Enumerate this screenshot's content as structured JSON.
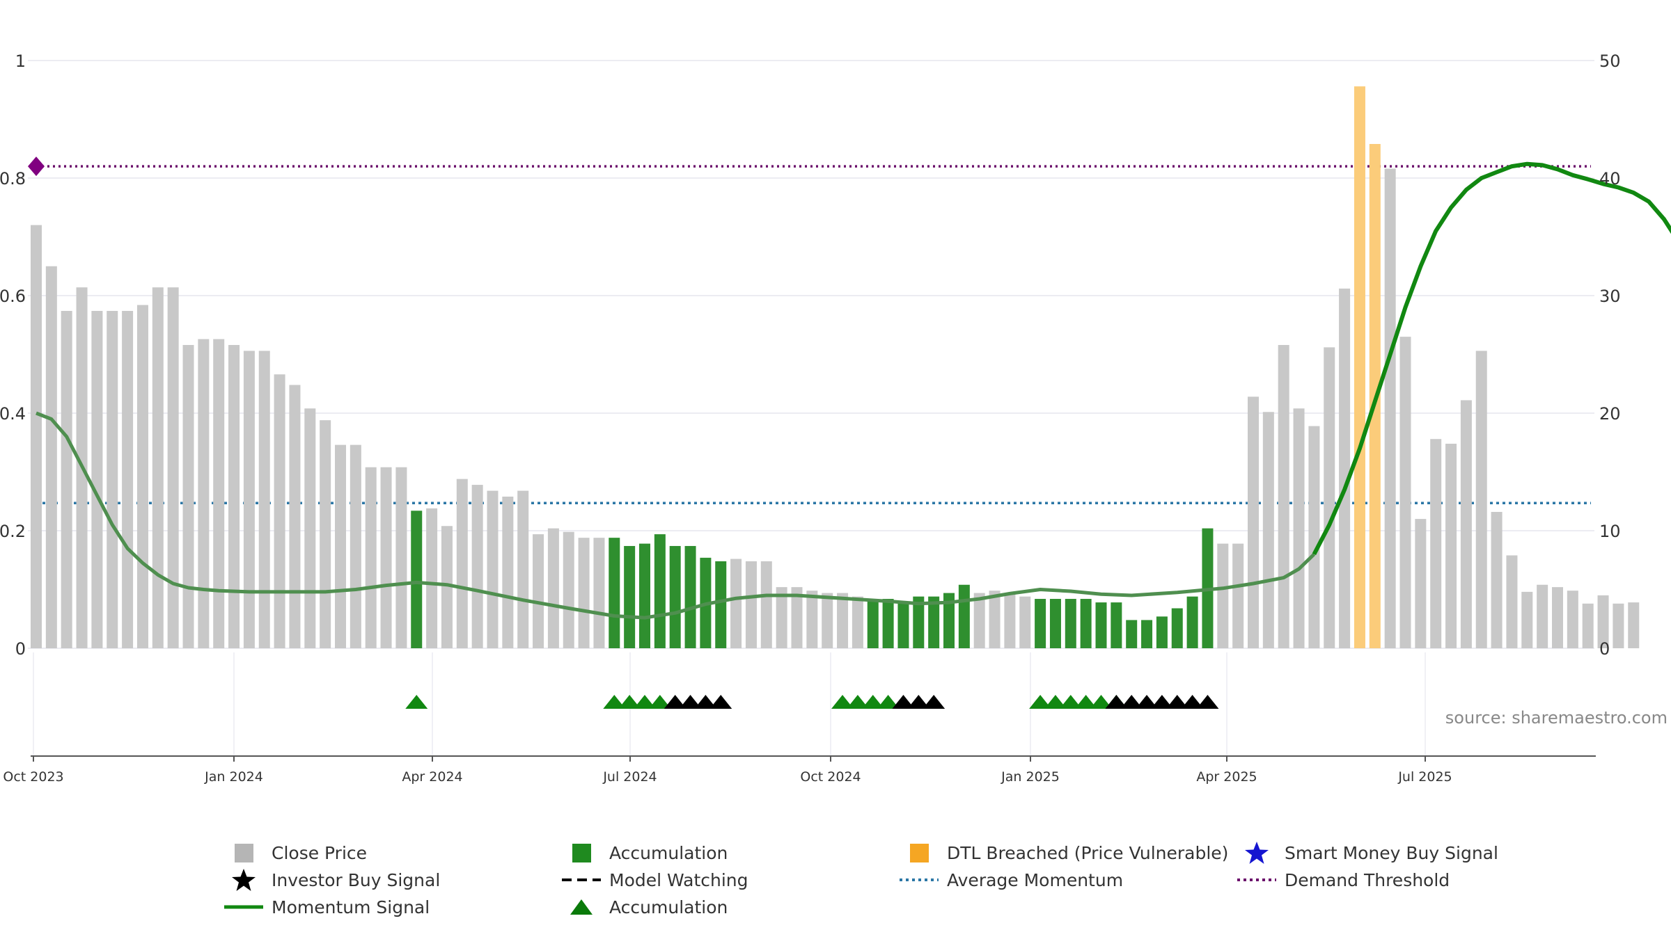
{
  "chart_data": {
    "type": "bar",
    "x_start": "Oct 2023",
    "x_ticks": [
      "Oct 2023",
      "Jan 2024",
      "Apr 2024",
      "Jul 2024",
      "Oct 2024",
      "Jan 2025",
      "Apr 2025",
      "Jul 2025"
    ],
    "y_left_ticks": [
      "0",
      "0.2",
      "0.4",
      "0.6",
      "0.8",
      "1"
    ],
    "y_right_ticks": [
      "0",
      "10",
      "20",
      "30",
      "40",
      "50"
    ],
    "y_left_range": [
      0,
      1
    ],
    "y_right_range": [
      0,
      50
    ],
    "demand_threshold": 0.82,
    "average_momentum": 0.247,
    "series": [
      {
        "name": "Close Price",
        "axis": "right",
        "values": [
          36,
          32.5,
          28.7,
          30.7,
          28.7,
          28.7,
          28.7,
          29.2,
          30.7,
          30.7,
          25.8,
          26.3,
          26.3,
          25.8,
          25.3,
          25.3,
          23.3,
          22.4,
          20.4,
          19.4,
          17.3,
          17.3,
          15.4,
          15.4,
          15.4,
          11.7,
          11.9,
          10.4,
          14.4,
          13.9,
          13.4,
          12.9,
          13.4,
          9.7,
          10.2,
          9.9,
          9.4,
          9.4,
          9.4,
          8.7,
          8.9,
          9.7,
          8.7,
          8.7,
          7.7,
          7.4,
          7.6,
          7.4,
          7.4,
          5.2,
          5.2,
          4.9,
          4.7,
          4.7,
          4.4,
          4.2,
          4.2,
          3.9,
          4.4,
          4.4,
          4.7,
          5.4,
          4.7,
          4.9,
          4.7,
          4.4,
          4.2,
          4.2,
          4.2,
          4.2,
          3.9,
          3.9,
          2.4,
          2.4,
          2.7,
          3.4,
          4.4,
          10.2,
          8.9,
          8.9,
          21.4,
          20.1,
          25.8,
          20.4,
          18.9,
          25.6,
          30.6,
          47.8,
          42.9,
          40.8,
          26.5,
          11.0,
          17.8,
          17.4,
          21.1,
          25.3,
          11.6,
          7.9,
          4.8,
          5.4,
          5.2,
          4.9,
          3.8,
          4.5,
          3.8,
          3.9
        ],
        "state": [
          "n",
          "n",
          "n",
          "n",
          "n",
          "n",
          "n",
          "n",
          "n",
          "n",
          "n",
          "n",
          "n",
          "n",
          "n",
          "n",
          "n",
          "n",
          "n",
          "n",
          "n",
          "n",
          "n",
          "n",
          "n",
          "a",
          "n",
          "n",
          "n",
          "n",
          "n",
          "n",
          "n",
          "n",
          "n",
          "n",
          "n",
          "n",
          "a",
          "a",
          "a",
          "a",
          "a",
          "a",
          "a",
          "a",
          "n",
          "n",
          "n",
          "n",
          "n",
          "n",
          "n",
          "n",
          "n",
          "a",
          "a",
          "a",
          "a",
          "a",
          "a",
          "a",
          "n",
          "n",
          "n",
          "n",
          "a",
          "a",
          "a",
          "a",
          "a",
          "a",
          "a",
          "a",
          "a",
          "a",
          "a",
          "a",
          "n",
          "n",
          "n",
          "n",
          "n",
          "n",
          "n",
          "n",
          "n",
          "d",
          "d",
          "n",
          "n",
          "n",
          "n",
          "n",
          "n",
          "n",
          "n",
          "n",
          "n",
          "n",
          "n",
          "n",
          "n",
          "n",
          "n",
          "n"
        ]
      },
      {
        "name": "Momentum Signal",
        "axis": "left",
        "points": [
          [
            0,
            0.4
          ],
          [
            1,
            0.39
          ],
          [
            2,
            0.36
          ],
          [
            3,
            0.31
          ],
          [
            4,
            0.26
          ],
          [
            5,
            0.21
          ],
          [
            6,
            0.17
          ],
          [
            7,
            0.145
          ],
          [
            8,
            0.125
          ],
          [
            9,
            0.11
          ],
          [
            10,
            0.103
          ],
          [
            11,
            0.1
          ],
          [
            12,
            0.098
          ],
          [
            14,
            0.096
          ],
          [
            17,
            0.096
          ],
          [
            19,
            0.096
          ],
          [
            21,
            0.1
          ],
          [
            23,
            0.107
          ],
          [
            25,
            0.112
          ],
          [
            27,
            0.108
          ],
          [
            29,
            0.098
          ],
          [
            32,
            0.082
          ],
          [
            35,
            0.068
          ],
          [
            38,
            0.055
          ],
          [
            40,
            0.052
          ],
          [
            42,
            0.06
          ],
          [
            44,
            0.075
          ],
          [
            46,
            0.085
          ],
          [
            48,
            0.09
          ],
          [
            50,
            0.09
          ],
          [
            53,
            0.085
          ],
          [
            56,
            0.08
          ],
          [
            58,
            0.076
          ],
          [
            60,
            0.078
          ],
          [
            62,
            0.084
          ],
          [
            64,
            0.093
          ],
          [
            66,
            0.1
          ],
          [
            68,
            0.097
          ],
          [
            70,
            0.092
          ],
          [
            72,
            0.09
          ],
          [
            75,
            0.095
          ],
          [
            78,
            0.102
          ],
          [
            80,
            0.11
          ],
          [
            82,
            0.12
          ],
          [
            83,
            0.135
          ],
          [
            84,
            0.16
          ],
          [
            85,
            0.21
          ],
          [
            86,
            0.27
          ],
          [
            87,
            0.34
          ],
          [
            88,
            0.42
          ],
          [
            89,
            0.5
          ],
          [
            90,
            0.58
          ],
          [
            91,
            0.65
          ],
          [
            92,
            0.71
          ],
          [
            93,
            0.75
          ],
          [
            94,
            0.78
          ],
          [
            95,
            0.8
          ],
          [
            96,
            0.81
          ],
          [
            97,
            0.82
          ],
          [
            98,
            0.824
          ],
          [
            99,
            0.822
          ],
          [
            100,
            0.815
          ],
          [
            101,
            0.805
          ],
          [
            102,
            0.798
          ],
          [
            103,
            0.79
          ],
          [
            104,
            0.784
          ],
          [
            105,
            0.775
          ],
          [
            106,
            0.76
          ],
          [
            107,
            0.73
          ],
          [
            108,
            0.69
          ],
          [
            109,
            0.64
          ],
          [
            110,
            0.6
          ],
          [
            111,
            0.58
          ],
          [
            112,
            0.41
          ],
          [
            113,
            0.39
          ],
          [
            114,
            0.36
          ],
          [
            115,
            0.24
          ],
          [
            116,
            0.21
          ],
          [
            117,
            0.17
          ]
        ]
      },
      {
        "name": "Accumulation",
        "type": "marker",
        "indices": [
          25,
          38,
          39,
          40,
          41,
          53,
          54,
          55,
          56,
          66,
          67,
          68,
          69,
          70,
          71
        ]
      },
      {
        "name": "Investor Buy Signal",
        "type": "marker",
        "indices": [
          42,
          43,
          44,
          45,
          57,
          58,
          59,
          71,
          72,
          73,
          74,
          75,
          76,
          77
        ]
      }
    ],
    "colors": {
      "close": "#c8c8c8",
      "accumulation": "#2f8f2f",
      "dtl": "#fbcc7a",
      "momentum": "#118811",
      "momentum_faded": "#4f8f4f",
      "average": "#2b77a6",
      "demand": "#6b0f6b",
      "grid": "#ececf2"
    },
    "source": "source: sharemaestro.com",
    "legend": [
      {
        "label": "Close Price",
        "symbol": "square",
        "color": "#b5b5b5"
      },
      {
        "label": "Accumulation",
        "symbol": "square",
        "color": "#1f8a1f"
      },
      {
        "label": "DTL Breached (Price Vulnerable)",
        "symbol": "square",
        "color": "#f5a623"
      },
      {
        "label": "Smart Money Buy Signal",
        "symbol": "star",
        "color": "#1515d0"
      },
      {
        "label": "Investor Buy Signal",
        "symbol": "star",
        "color": "#000000"
      },
      {
        "label": "Model Watching",
        "symbol": "dash",
        "color": "#000000"
      },
      {
        "label": "Average Momentum",
        "symbol": "dotted",
        "color": "#2b77a6"
      },
      {
        "label": "Demand Threshold",
        "symbol": "dotted",
        "color": "#6b0f6b"
      },
      {
        "label": "Momentum Signal",
        "symbol": "line",
        "color": "#118811"
      },
      {
        "label": "Accumulation",
        "symbol": "triangle",
        "color": "#0a7a0a"
      }
    ]
  }
}
